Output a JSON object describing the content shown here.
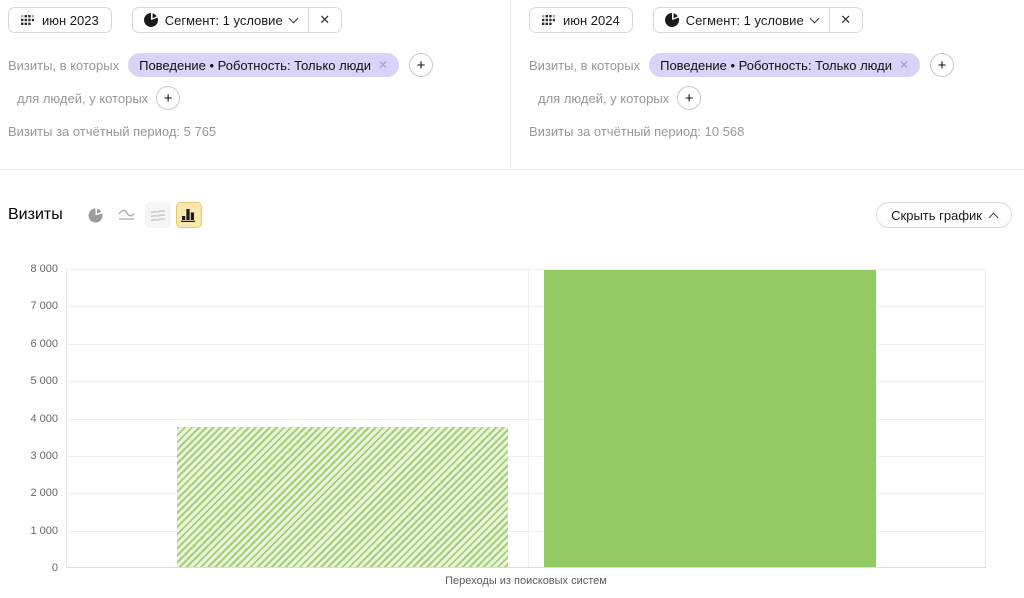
{
  "panels": [
    {
      "date_label": "июн 2023",
      "segment_label": "Сегмент: 1 условие",
      "visits_in_which_label": "Визиты, в которых",
      "condition_chip": "Поведение • Роботность: Только люди",
      "for_people_label": "для людей, у которых",
      "period_summary": "Визиты за отчётный период: 5 765"
    },
    {
      "date_label": "июн 2024",
      "segment_label": "Сегмент: 1 условие",
      "visits_in_which_label": "Визиты, в которых",
      "condition_chip": "Поведение • Роботность: Только люди",
      "for_people_label": "для людей, у которых",
      "period_summary": "Визиты за отчётный период: 10 568"
    }
  ],
  "icons": {
    "close": "✕",
    "chip_close": "✕",
    "plus": "+"
  },
  "chart_header": {
    "title": "Визиты",
    "hide_button_label": "Скрыть график"
  },
  "chart_data": {
    "type": "bar",
    "title": "Визиты",
    "categories": [
      "Переходы из поисковых систем"
    ],
    "series": [
      {
        "name": "июн 2023",
        "values": [
          3750
        ],
        "style": "hatched",
        "color": "#93ca64"
      },
      {
        "name": "июн 2024",
        "values": [
          7950
        ],
        "style": "solid",
        "color": "#93ca64"
      }
    ],
    "ylim": [
      0,
      8000
    ],
    "ytick_step": 1000,
    "grid": true,
    "legend": "none",
    "xlabel": "",
    "ylabel": ""
  }
}
